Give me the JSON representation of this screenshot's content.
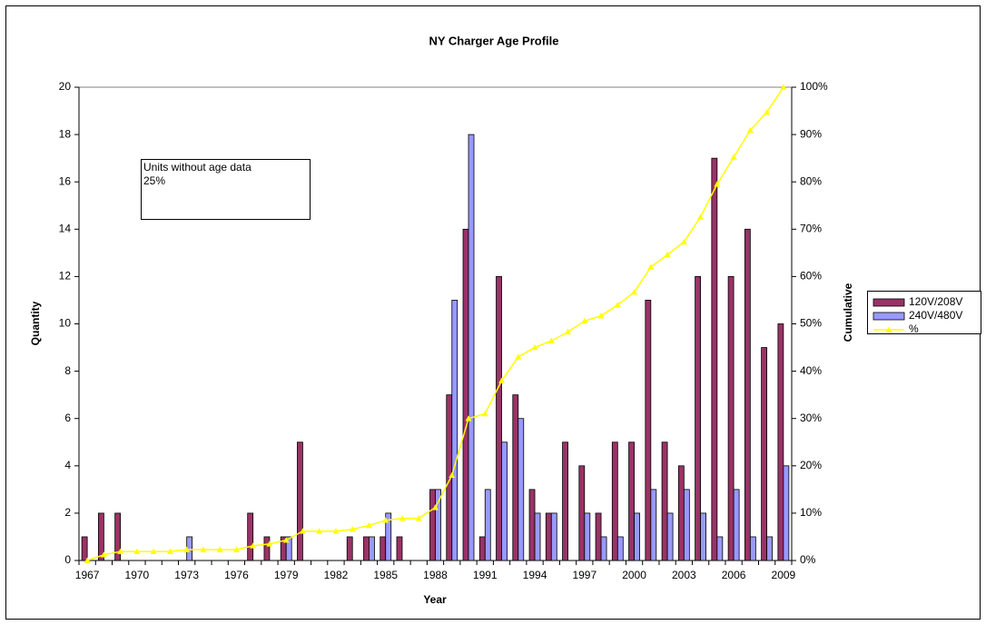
{
  "chart_data": {
    "type": "bar",
    "title": "NY Charger Age Profile",
    "x_label": "Year",
    "y_label": "Quantity",
    "y2_label": "Cumulative",
    "annotation": [
      "Units without age data",
      "25%"
    ],
    "categories": [
      "1967",
      null,
      null,
      "1970",
      null,
      null,
      "1973",
      null,
      null,
      "1976",
      null,
      null,
      "1979",
      null,
      null,
      "1982",
      null,
      null,
      "1985",
      null,
      null,
      "1988",
      null,
      null,
      "1991",
      null,
      null,
      "1994",
      null,
      null,
      "1997",
      null,
      null,
      "2000",
      null,
      null,
      "2003",
      null,
      null,
      "2006",
      null,
      null,
      "2009"
    ],
    "series": [
      {
        "name": "120V/208V",
        "color": "#993366",
        "values": [
          1,
          2,
          2,
          0,
          0,
          0,
          0,
          0,
          0,
          0,
          2,
          1,
          1,
          5,
          0,
          0,
          1,
          1,
          1,
          1,
          0,
          3,
          7,
          14,
          1,
          12,
          7,
          3,
          2,
          5,
          4,
          2,
          5,
          5,
          11,
          5,
          4,
          12,
          17,
          12,
          14,
          9,
          10
        ]
      },
      {
        "name": "240V/480V",
        "color": "#9999ff",
        "values": [
          0,
          0,
          0,
          0,
          0,
          0,
          1,
          0,
          0,
          0,
          0,
          0,
          1,
          0,
          0,
          0,
          0,
          1,
          2,
          0,
          0,
          3,
          11,
          18,
          3,
          5,
          6,
          2,
          2,
          0,
          2,
          1,
          1,
          2,
          3,
          2,
          3,
          2,
          1,
          3,
          1,
          1,
          4
        ]
      },
      {
        "name": "%",
        "color": "#ffff00",
        "type": "line",
        "axis": "y2",
        "values": [
          0,
          1.2,
          1.9,
          1.9,
          1.9,
          1.9,
          2.3,
          2.3,
          2.3,
          2.3,
          3.1,
          3.5,
          4.3,
          6.2,
          6.2,
          6.2,
          6.6,
          7.4,
          8.5,
          8.9,
          8.9,
          11.2,
          18,
          30,
          31,
          38,
          43,
          45,
          46.4,
          48.3,
          50.6,
          51.7,
          54,
          56.7,
          62,
          64.6,
          67.3,
          72.6,
          79.5,
          85.2,
          90.9,
          94.7,
          100
        ]
      }
    ],
    "ylim": [
      0,
      20
    ],
    "yticks": [
      0,
      2,
      4,
      6,
      8,
      10,
      12,
      14,
      16,
      18,
      20
    ],
    "y2lim": [
      0,
      100
    ],
    "y2ticks": [
      {
        "value": 0,
        "label": "0%"
      },
      {
        "value": 10,
        "label": "10%"
      },
      {
        "value": 20,
        "label": "20%"
      },
      {
        "value": 30,
        "label": "30%"
      },
      {
        "value": 40,
        "label": "40%"
      },
      {
        "value": 50,
        "label": "50%"
      },
      {
        "value": 60,
        "label": "60%"
      },
      {
        "value": 70,
        "label": "70%"
      },
      {
        "value": 80,
        "label": "80%"
      },
      {
        "value": 90,
        "label": "90%"
      },
      {
        "value": 100,
        "label": "100%"
      }
    ],
    "grid": false,
    "legend": "right"
  }
}
